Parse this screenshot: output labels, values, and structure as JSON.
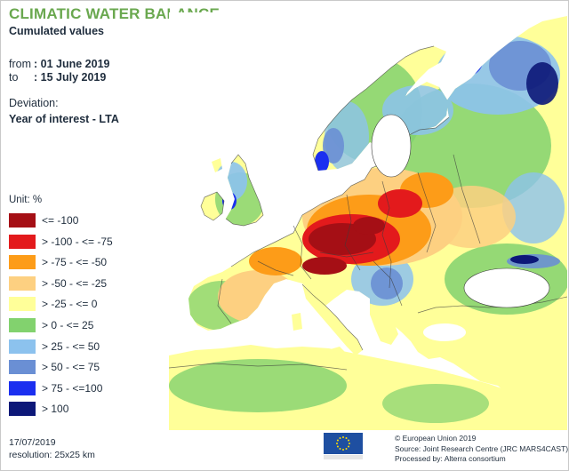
{
  "title": "CLIMATIC WATER BALANCE",
  "subtitle": "Cumulated values",
  "period": {
    "from_label": "from",
    "from_value": ": 01 June 2019",
    "to_label": "to",
    "to_value": ": 15 July 2019"
  },
  "deviation": {
    "label": "Deviation:",
    "value": "Year of interest - LTA"
  },
  "legend": {
    "unit": "Unit:  %",
    "classes": [
      {
        "label": "<= -100",
        "color": "#a50f15"
      },
      {
        "label": "> -100 - <= -75",
        "color": "#e31a1c"
      },
      {
        "label": "> -75 - <= -50",
        "color": "#fd9c18"
      },
      {
        "label": "> -50 - <= -25",
        "color": "#fdd081"
      },
      {
        "label": "> -25 - <= 0",
        "color": "#ffff99"
      },
      {
        "label": "> 0 - <= 25",
        "color": "#82d26e"
      },
      {
        "label": "> 25 - <= 50",
        "color": "#8cc2ee"
      },
      {
        "label": "> 50 - <= 75",
        "color": "#6a8fd4"
      },
      {
        "label": "> 75 - <=100",
        "color": "#1b2ff0"
      },
      {
        "label": "> 100",
        "color": "#0c1778"
      }
    ]
  },
  "footer": {
    "date": "17/07/2019",
    "resolution": "resolution:  25x25 km"
  },
  "credits": [
    "© European Union 2019",
    "Source: Joint Research Centre (JRC MARS4CAST)",
    "Processed by: Alterra consortium"
  ],
  "colors": {
    "title": "#6aa84f",
    "sea": "#ffffff",
    "border": "#3c3c3c",
    "eu_flag": "#1e4fa1",
    "eu_stars": "#ffdd00"
  }
}
